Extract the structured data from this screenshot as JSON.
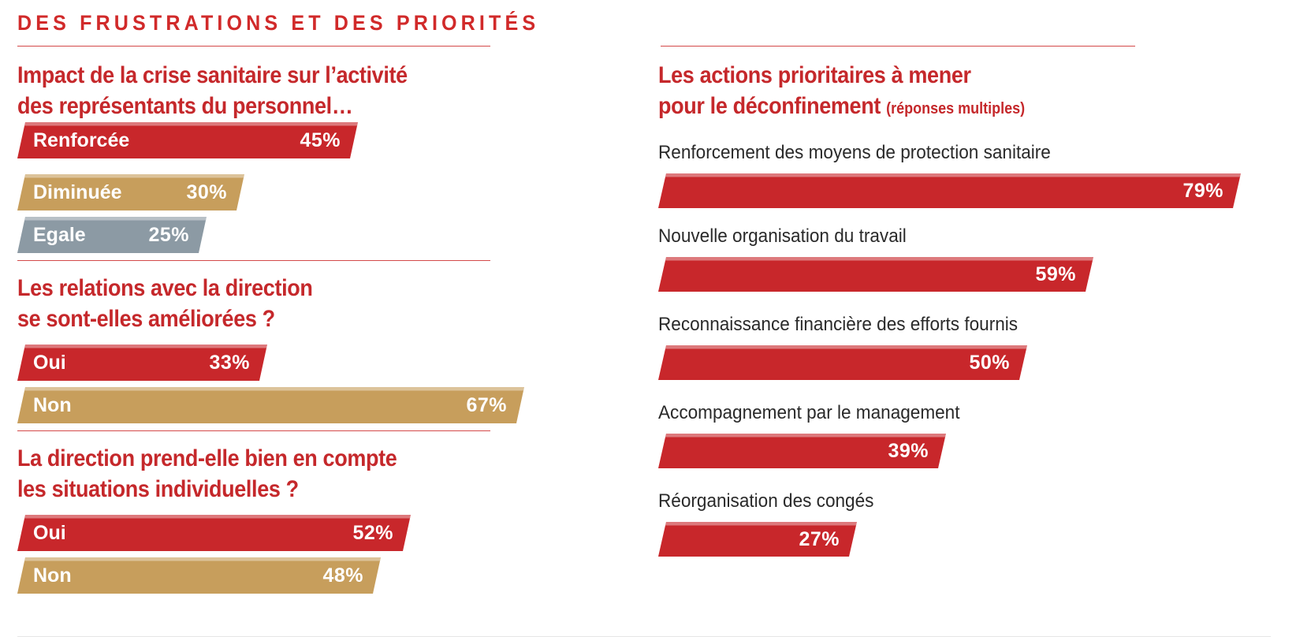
{
  "title": "DES FRUSTRATIONS ET DES PRIORITÉS",
  "colors": {
    "red": "#c8272b",
    "gold": "#c79e5c",
    "gray": "#8c9aa4",
    "title_red": "#d12a2a"
  },
  "chart_data": [
    {
      "type": "bar",
      "title_line1": "Impact de la crise sanitaire sur l’activité",
      "title_line2": "des représentants du personnel…",
      "unit": "%",
      "bars": [
        {
          "label": "Renforcée",
          "value": 45,
          "value_label": "45%",
          "color": "#c8272b"
        },
        {
          "label": "Diminuée",
          "value": 30,
          "value_label": "30%",
          "color": "#c79e5c"
        },
        {
          "label": "Egale",
          "value": 25,
          "value_label": "25%",
          "color": "#8c9aa4"
        }
      ]
    },
    {
      "type": "bar",
      "title_line1": "Les relations avec la direction",
      "title_line2": "se sont-elles améliorées ?",
      "unit": "%",
      "bars": [
        {
          "label": "Oui",
          "value": 33,
          "value_label": "33%",
          "color": "#c8272b"
        },
        {
          "label": "Non",
          "value": 67,
          "value_label": "67%",
          "color": "#c79e5c"
        }
      ]
    },
    {
      "type": "bar",
      "title_line1": "La direction prend-elle bien en compte",
      "title_line2": "les situations individuelles ?",
      "unit": "%",
      "bars": [
        {
          "label": "Oui",
          "value": 52,
          "value_label": "52%",
          "color": "#c8272b"
        },
        {
          "label": "Non",
          "value": 48,
          "value_label": "48%",
          "color": "#c79e5c"
        }
      ]
    },
    {
      "type": "bar",
      "title_line1": "Les actions prioritaires à mener",
      "title_line2": "pour le déconfinement",
      "subtitle": "(réponses multiples)",
      "unit": "%",
      "bars": [
        {
          "label": "Renforcement des moyens de protection sanitaire",
          "value": 79,
          "value_label": "79%",
          "color": "#c8272b"
        },
        {
          "label": "Nouvelle organisation du travail",
          "value": 59,
          "value_label": "59%",
          "color": "#c8272b"
        },
        {
          "label": "Reconnaissance financière des efforts fournis",
          "value": 50,
          "value_label": "50%",
          "color": "#c8272b"
        },
        {
          "label": "Accompagnement par le management",
          "value": 39,
          "value_label": "39%",
          "color": "#c8272b"
        },
        {
          "label": "Réorganisation des congés",
          "value": 27,
          "value_label": "27%",
          "color": "#c8272b"
        }
      ]
    }
  ]
}
